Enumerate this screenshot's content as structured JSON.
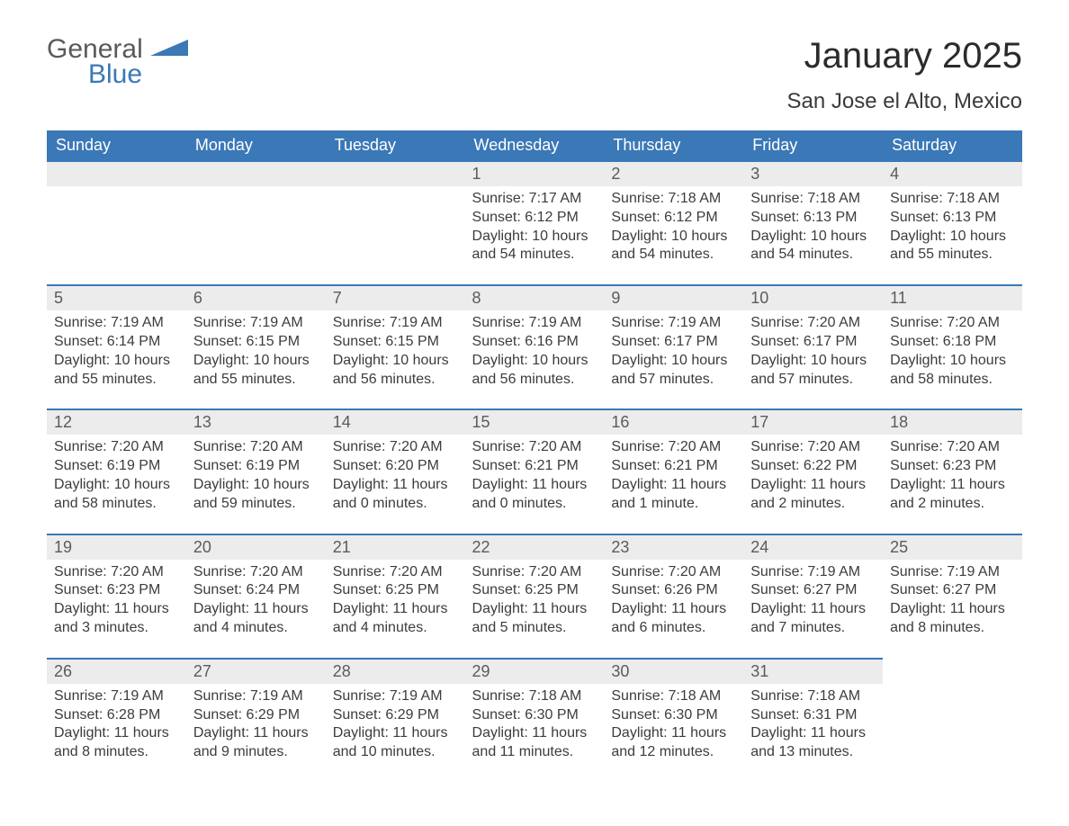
{
  "logo": {
    "word1": "General",
    "word2": "Blue",
    "triangle_color": "#3b78b7",
    "text_color_gray": "#5a5a5a"
  },
  "header": {
    "month_title": "January 2025",
    "location": "San Jose el Alto, Mexico"
  },
  "styles": {
    "header_bg": "#3b78b7",
    "header_text": "#ffffff",
    "daynum_bg": "#ececec",
    "daynum_border": "#3b78b7",
    "body_bg": "#ffffff",
    "text_color": "#3c3c3c",
    "title_fontsize": 40,
    "location_fontsize": 24,
    "weekday_fontsize": 18,
    "daynum_fontsize": 18,
    "body_fontsize": 16
  },
  "weekdays": [
    "Sunday",
    "Monday",
    "Tuesday",
    "Wednesday",
    "Thursday",
    "Friday",
    "Saturday"
  ],
  "weeks": [
    [
      null,
      null,
      null,
      {
        "n": "1",
        "sunrise": "Sunrise: 7:17 AM",
        "sunset": "Sunset: 6:12 PM",
        "dl1": "Daylight: 10 hours",
        "dl2": "and 54 minutes."
      },
      {
        "n": "2",
        "sunrise": "Sunrise: 7:18 AM",
        "sunset": "Sunset: 6:12 PM",
        "dl1": "Daylight: 10 hours",
        "dl2": "and 54 minutes."
      },
      {
        "n": "3",
        "sunrise": "Sunrise: 7:18 AM",
        "sunset": "Sunset: 6:13 PM",
        "dl1": "Daylight: 10 hours",
        "dl2": "and 54 minutes."
      },
      {
        "n": "4",
        "sunrise": "Sunrise: 7:18 AM",
        "sunset": "Sunset: 6:13 PM",
        "dl1": "Daylight: 10 hours",
        "dl2": "and 55 minutes."
      }
    ],
    [
      {
        "n": "5",
        "sunrise": "Sunrise: 7:19 AM",
        "sunset": "Sunset: 6:14 PM",
        "dl1": "Daylight: 10 hours",
        "dl2": "and 55 minutes."
      },
      {
        "n": "6",
        "sunrise": "Sunrise: 7:19 AM",
        "sunset": "Sunset: 6:15 PM",
        "dl1": "Daylight: 10 hours",
        "dl2": "and 55 minutes."
      },
      {
        "n": "7",
        "sunrise": "Sunrise: 7:19 AM",
        "sunset": "Sunset: 6:15 PM",
        "dl1": "Daylight: 10 hours",
        "dl2": "and 56 minutes."
      },
      {
        "n": "8",
        "sunrise": "Sunrise: 7:19 AM",
        "sunset": "Sunset: 6:16 PM",
        "dl1": "Daylight: 10 hours",
        "dl2": "and 56 minutes."
      },
      {
        "n": "9",
        "sunrise": "Sunrise: 7:19 AM",
        "sunset": "Sunset: 6:17 PM",
        "dl1": "Daylight: 10 hours",
        "dl2": "and 57 minutes."
      },
      {
        "n": "10",
        "sunrise": "Sunrise: 7:20 AM",
        "sunset": "Sunset: 6:17 PM",
        "dl1": "Daylight: 10 hours",
        "dl2": "and 57 minutes."
      },
      {
        "n": "11",
        "sunrise": "Sunrise: 7:20 AM",
        "sunset": "Sunset: 6:18 PM",
        "dl1": "Daylight: 10 hours",
        "dl2": "and 58 minutes."
      }
    ],
    [
      {
        "n": "12",
        "sunrise": "Sunrise: 7:20 AM",
        "sunset": "Sunset: 6:19 PM",
        "dl1": "Daylight: 10 hours",
        "dl2": "and 58 minutes."
      },
      {
        "n": "13",
        "sunrise": "Sunrise: 7:20 AM",
        "sunset": "Sunset: 6:19 PM",
        "dl1": "Daylight: 10 hours",
        "dl2": "and 59 minutes."
      },
      {
        "n": "14",
        "sunrise": "Sunrise: 7:20 AM",
        "sunset": "Sunset: 6:20 PM",
        "dl1": "Daylight: 11 hours",
        "dl2": "and 0 minutes."
      },
      {
        "n": "15",
        "sunrise": "Sunrise: 7:20 AM",
        "sunset": "Sunset: 6:21 PM",
        "dl1": "Daylight: 11 hours",
        "dl2": "and 0 minutes."
      },
      {
        "n": "16",
        "sunrise": "Sunrise: 7:20 AM",
        "sunset": "Sunset: 6:21 PM",
        "dl1": "Daylight: 11 hours",
        "dl2": "and 1 minute."
      },
      {
        "n": "17",
        "sunrise": "Sunrise: 7:20 AM",
        "sunset": "Sunset: 6:22 PM",
        "dl1": "Daylight: 11 hours",
        "dl2": "and 2 minutes."
      },
      {
        "n": "18",
        "sunrise": "Sunrise: 7:20 AM",
        "sunset": "Sunset: 6:23 PM",
        "dl1": "Daylight: 11 hours",
        "dl2": "and 2 minutes."
      }
    ],
    [
      {
        "n": "19",
        "sunrise": "Sunrise: 7:20 AM",
        "sunset": "Sunset: 6:23 PM",
        "dl1": "Daylight: 11 hours",
        "dl2": "and 3 minutes."
      },
      {
        "n": "20",
        "sunrise": "Sunrise: 7:20 AM",
        "sunset": "Sunset: 6:24 PM",
        "dl1": "Daylight: 11 hours",
        "dl2": "and 4 minutes."
      },
      {
        "n": "21",
        "sunrise": "Sunrise: 7:20 AM",
        "sunset": "Sunset: 6:25 PM",
        "dl1": "Daylight: 11 hours",
        "dl2": "and 4 minutes."
      },
      {
        "n": "22",
        "sunrise": "Sunrise: 7:20 AM",
        "sunset": "Sunset: 6:25 PM",
        "dl1": "Daylight: 11 hours",
        "dl2": "and 5 minutes."
      },
      {
        "n": "23",
        "sunrise": "Sunrise: 7:20 AM",
        "sunset": "Sunset: 6:26 PM",
        "dl1": "Daylight: 11 hours",
        "dl2": "and 6 minutes."
      },
      {
        "n": "24",
        "sunrise": "Sunrise: 7:19 AM",
        "sunset": "Sunset: 6:27 PM",
        "dl1": "Daylight: 11 hours",
        "dl2": "and 7 minutes."
      },
      {
        "n": "25",
        "sunrise": "Sunrise: 7:19 AM",
        "sunset": "Sunset: 6:27 PM",
        "dl1": "Daylight: 11 hours",
        "dl2": "and 8 minutes."
      }
    ],
    [
      {
        "n": "26",
        "sunrise": "Sunrise: 7:19 AM",
        "sunset": "Sunset: 6:28 PM",
        "dl1": "Daylight: 11 hours",
        "dl2": "and 8 minutes."
      },
      {
        "n": "27",
        "sunrise": "Sunrise: 7:19 AM",
        "sunset": "Sunset: 6:29 PM",
        "dl1": "Daylight: 11 hours",
        "dl2": "and 9 minutes."
      },
      {
        "n": "28",
        "sunrise": "Sunrise: 7:19 AM",
        "sunset": "Sunset: 6:29 PM",
        "dl1": "Daylight: 11 hours",
        "dl2": "and 10 minutes."
      },
      {
        "n": "29",
        "sunrise": "Sunrise: 7:18 AM",
        "sunset": "Sunset: 6:30 PM",
        "dl1": "Daylight: 11 hours",
        "dl2": "and 11 minutes."
      },
      {
        "n": "30",
        "sunrise": "Sunrise: 7:18 AM",
        "sunset": "Sunset: 6:30 PM",
        "dl1": "Daylight: 11 hours",
        "dl2": "and 12 minutes."
      },
      {
        "n": "31",
        "sunrise": "Sunrise: 7:18 AM",
        "sunset": "Sunset: 6:31 PM",
        "dl1": "Daylight: 11 hours",
        "dl2": "and 13 minutes."
      },
      null
    ]
  ]
}
